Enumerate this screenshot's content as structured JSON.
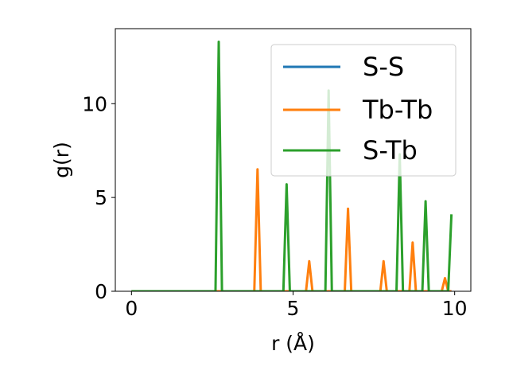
{
  "chart_data": {
    "type": "line",
    "xlabel": "r (Å)",
    "ylabel": "g(r)",
    "xlim": [
      -0.5,
      10.5
    ],
    "ylim": [
      0,
      14
    ],
    "x_ticks": [
      0,
      5,
      10
    ],
    "y_ticks": [
      0,
      5,
      10
    ],
    "x_tick_labels": [
      "0",
      "5",
      "10"
    ],
    "y_tick_labels": [
      "0",
      "5",
      "10"
    ],
    "legend_position": "top-right",
    "grid": false,
    "series": [
      {
        "name": "S-S",
        "color": "#1f77b4",
        "points": [
          [
            0,
            0
          ],
          [
            9.9,
            0
          ]
        ]
      },
      {
        "name": "Tb-Tb",
        "color": "#ff7f0e",
        "points": [
          [
            0,
            0
          ],
          [
            3.8,
            0
          ],
          [
            3.9,
            6.5
          ],
          [
            4.0,
            0
          ],
          [
            5.4,
            0
          ],
          [
            5.5,
            1.6
          ],
          [
            5.6,
            0
          ],
          [
            6.6,
            0
          ],
          [
            6.7,
            4.4
          ],
          [
            6.8,
            0
          ],
          [
            7.7,
            0
          ],
          [
            7.8,
            1.6
          ],
          [
            7.9,
            0
          ],
          [
            8.6,
            0
          ],
          [
            8.7,
            2.6
          ],
          [
            8.8,
            0
          ],
          [
            9.6,
            0
          ],
          [
            9.7,
            0.7
          ],
          [
            9.8,
            0
          ],
          [
            9.9,
            0
          ]
        ]
      },
      {
        "name": "S-Tb",
        "color": "#2ca02c",
        "points": [
          [
            0,
            0
          ],
          [
            2.6,
            0
          ],
          [
            2.7,
            13.3
          ],
          [
            2.8,
            0
          ],
          [
            4.7,
            0
          ],
          [
            4.8,
            5.7
          ],
          [
            4.9,
            0
          ],
          [
            6.0,
            0
          ],
          [
            6.1,
            10.7
          ],
          [
            6.2,
            0
          ],
          [
            8.2,
            0
          ],
          [
            8.3,
            7.3
          ],
          [
            8.4,
            0
          ],
          [
            9.0,
            0
          ],
          [
            9.1,
            4.8
          ],
          [
            9.2,
            0
          ],
          [
            9.8,
            0
          ],
          [
            9.9,
            4.1
          ]
        ]
      }
    ]
  }
}
